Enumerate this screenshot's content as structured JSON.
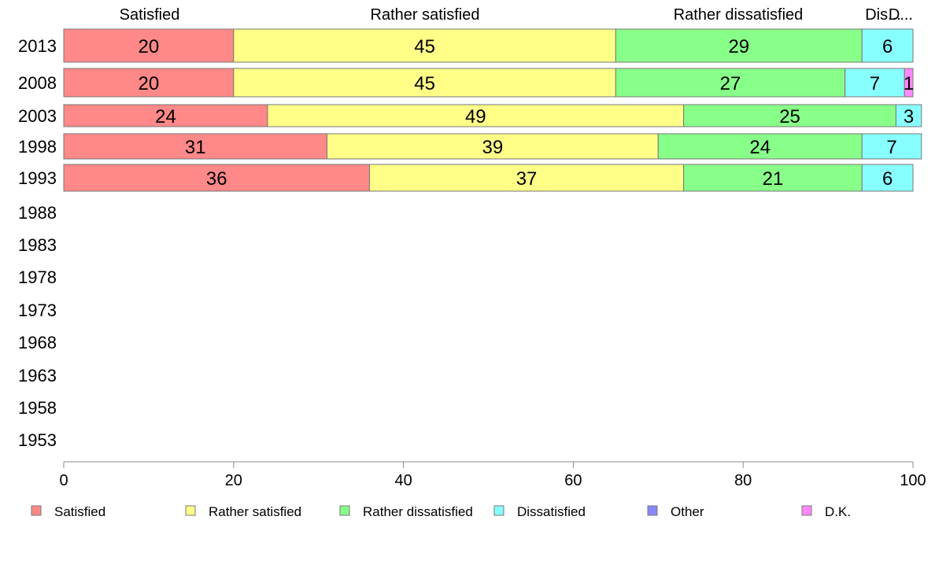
{
  "chart_data": {
    "type": "bar",
    "orientation": "horizontal",
    "stacked": true,
    "percent": true,
    "categories": [
      "2013",
      "2008",
      "2003",
      "1998",
      "1993",
      "1988",
      "1983",
      "1978",
      "1973",
      "1968",
      "1963",
      "1958",
      "1953"
    ],
    "series": [
      {
        "name": "Satisfied",
        "color": "#ff8888",
        "values": [
          20,
          20,
          24,
          31,
          36,
          null,
          null,
          null,
          null,
          null,
          null,
          null,
          null
        ]
      },
      {
        "name": "Rather satisfied",
        "color": "#ffff88",
        "values": [
          45,
          45,
          49,
          39,
          37,
          null,
          null,
          null,
          null,
          null,
          null,
          null,
          null
        ]
      },
      {
        "name": "Rather dissatisfied",
        "color": "#88ff88",
        "values": [
          29,
          27,
          25,
          24,
          21,
          null,
          null,
          null,
          null,
          null,
          null,
          null,
          null
        ]
      },
      {
        "name": "Dissatisfied",
        "color": "#88ffff",
        "values": [
          6,
          7,
          3,
          7,
          6,
          null,
          null,
          null,
          null,
          null,
          null,
          null,
          null
        ]
      },
      {
        "name": "Other",
        "color": "#8888ff",
        "values": [
          0,
          0,
          0,
          0,
          0,
          null,
          null,
          null,
          null,
          null,
          null,
          null,
          null
        ]
      },
      {
        "name": "D.K.",
        "color": "#ff88ff",
        "values": [
          0,
          1,
          0,
          0,
          0,
          null,
          null,
          null,
          null,
          null,
          null,
          null,
          null
        ]
      }
    ],
    "column_headers": [
      "Satisfied",
      "Rather satisfied",
      "Rather dissatisfied",
      "Dis...",
      "D..."
    ],
    "xlim": [
      0,
      100
    ],
    "xticks": [
      0,
      20,
      40,
      60,
      80,
      100
    ],
    "legend_position": "bottom",
    "grid": false
  }
}
